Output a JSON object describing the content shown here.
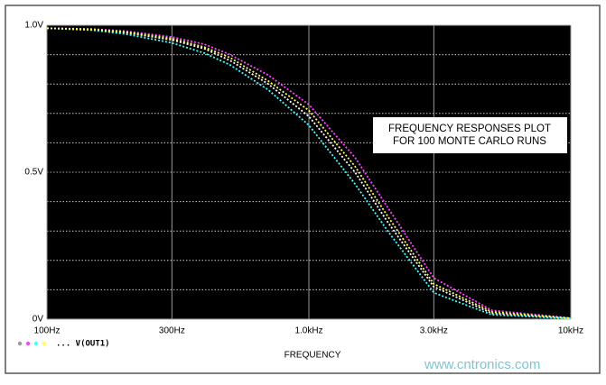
{
  "chart_data": {
    "type": "line",
    "annotation": "FREQUENCY RESPONSES PLOT\nFOR 100 MONTE CARLO RUNS",
    "x_label": "FREQUENCY",
    "legend": "... V(OUT1)",
    "watermark": "www.cntronics.com",
    "x": [
      100,
      150,
      200,
      300,
      400,
      500,
      700,
      1000,
      1500,
      2000,
      3000,
      5000,
      10000
    ],
    "series": [
      {
        "color": "#ffffff",
        "values": [
          0.99,
          0.985,
          0.975,
          0.95,
          0.92,
          0.88,
          0.8,
          0.69,
          0.5,
          0.33,
          0.11,
          0.02,
          0.003
        ]
      },
      {
        "color": "#ff44ff",
        "values": [
          0.99,
          0.987,
          0.98,
          0.96,
          0.935,
          0.9,
          0.83,
          0.73,
          0.55,
          0.38,
          0.14,
          0.03,
          0.004
        ]
      },
      {
        "color": "#44ffff",
        "values": [
          0.99,
          0.983,
          0.97,
          0.94,
          0.905,
          0.865,
          0.78,
          0.66,
          0.46,
          0.3,
          0.09,
          0.015,
          0.002
        ]
      },
      {
        "color": "#ffff55",
        "values": [
          0.99,
          0.986,
          0.977,
          0.955,
          0.925,
          0.89,
          0.81,
          0.71,
          0.52,
          0.35,
          0.12,
          0.025,
          0.003
        ]
      }
    ],
    "xlim": [
      100,
      10000
    ],
    "log_x": true,
    "xticks": [
      {
        "value": 100,
        "label": "100Hz"
      },
      {
        "value": 300,
        "label": "300Hz"
      },
      {
        "value": 1000,
        "label": "1.0kHz"
      },
      {
        "value": 3000,
        "label": "3.0kHz"
      },
      {
        "value": 10000,
        "label": "10kHz"
      }
    ],
    "ylim": [
      0,
      1
    ],
    "yticks": [
      {
        "value": 0,
        "label": "0V"
      },
      {
        "value": 0.5,
        "label": "0.5V"
      },
      {
        "value": 1,
        "label": "1.0V"
      }
    ],
    "y_minor_grid": [
      0.1,
      0.2,
      0.3,
      0.4,
      0.6,
      0.7,
      0.8,
      0.9
    ],
    "grid": true
  }
}
